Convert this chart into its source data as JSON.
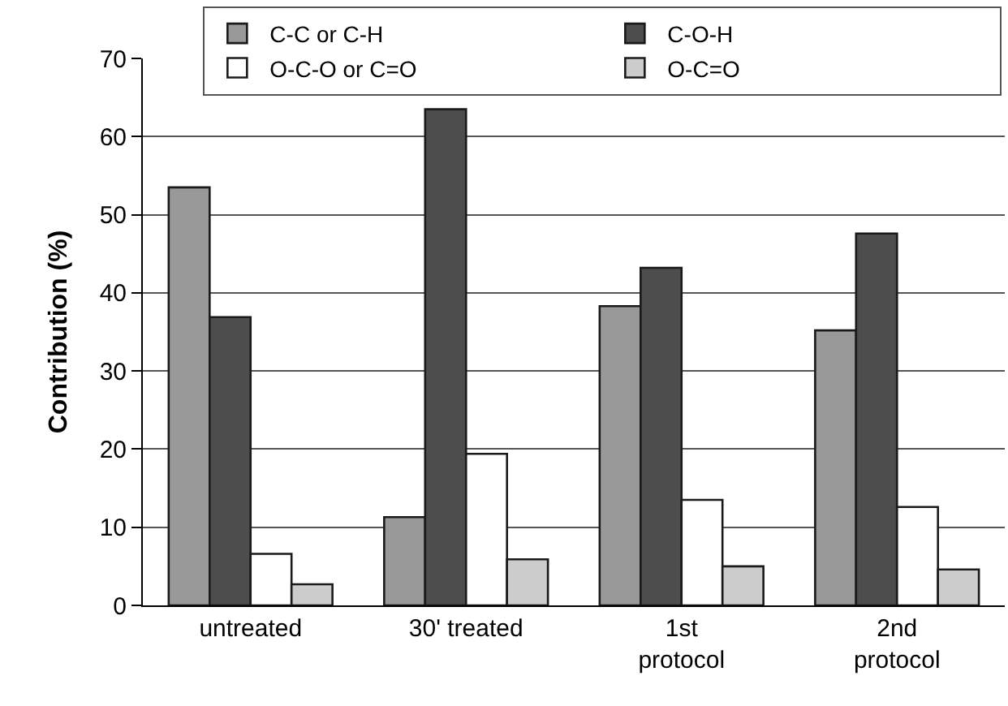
{
  "chart_data": {
    "type": "bar",
    "ylabel": "Contribution (%)",
    "categories": [
      "untreated",
      "30' treated",
      "1st\nprotocol",
      "2nd\nprotocol"
    ],
    "series": [
      {
        "name": "C-C or C-H",
        "color": "#999999",
        "values": [
          53.5,
          11.3,
          38.3,
          35.2
        ]
      },
      {
        "name": "C-O-H",
        "color": "#4d4d4d",
        "values": [
          36.9,
          63.5,
          43.2,
          47.6
        ]
      },
      {
        "name": "O-C-O or C=O",
        "color": "#ffffff",
        "values": [
          6.6,
          19.4,
          13.5,
          12.6
        ]
      },
      {
        "name": "O-C=O",
        "color": "#cccccc",
        "values": [
          2.7,
          5.9,
          5.0,
          4.6
        ]
      }
    ],
    "ylim": [
      0,
      70
    ],
    "yticks": [
      0,
      10,
      20,
      30,
      40,
      50,
      60,
      70
    ],
    "grid": "y",
    "legend": "top"
  }
}
